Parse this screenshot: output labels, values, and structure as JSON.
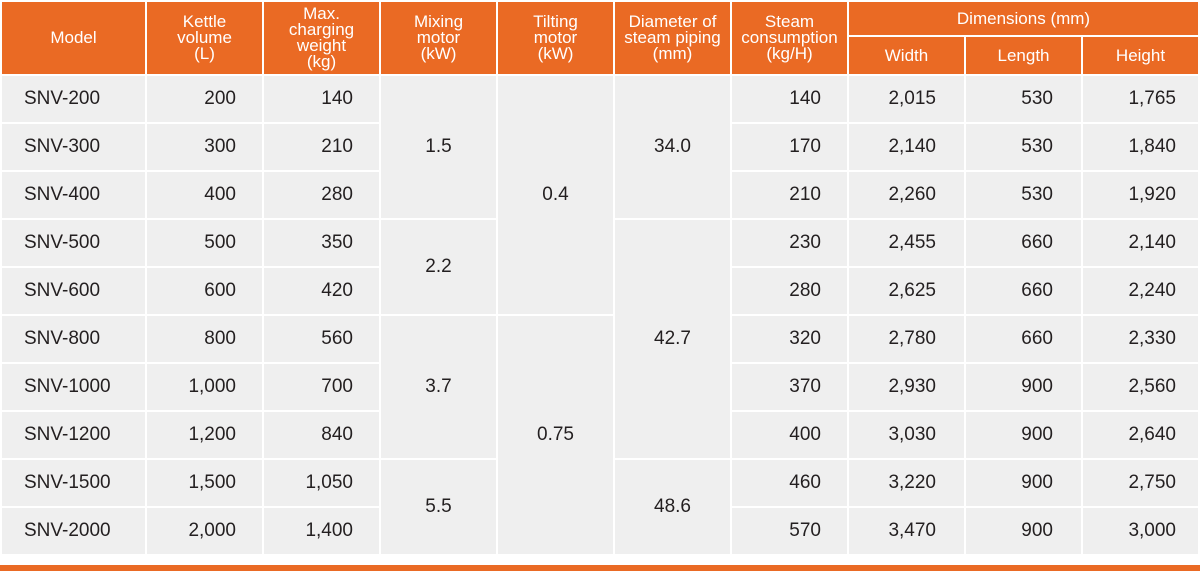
{
  "header": {
    "model": "Model",
    "kettle_volume": [
      "Kettle",
      "volume",
      "(L)"
    ],
    "max_charging": [
      "Max.",
      "charging",
      "weight",
      "(kg)"
    ],
    "mixing_motor": [
      "Mixing",
      "motor",
      "(kW)"
    ],
    "tilting_motor": [
      "Tilting",
      "motor",
      "(kW)"
    ],
    "steam_piping": [
      "Diameter of",
      "steam piping",
      "(mm)"
    ],
    "steam_consumption": [
      "Steam",
      "consumption",
      "(kg/H)"
    ],
    "dimensions": "Dimensions (mm)",
    "width": "Width",
    "length": "Length",
    "height": "Height"
  },
  "rows": [
    {
      "model": "SNV-200",
      "volume": "200",
      "weight": "140",
      "steam": "140",
      "width": "2,015",
      "length": "530",
      "height": "1,765"
    },
    {
      "model": "SNV-300",
      "volume": "300",
      "weight": "210",
      "steam": "170",
      "width": "2,140",
      "length": "530",
      "height": "1,840"
    },
    {
      "model": "SNV-400",
      "volume": "400",
      "weight": "280",
      "steam": "210",
      "width": "2,260",
      "length": "530",
      "height": "1,920"
    },
    {
      "model": "SNV-500",
      "volume": "500",
      "weight": "350",
      "steam": "230",
      "width": "2,455",
      "length": "660",
      "height": "2,140"
    },
    {
      "model": "SNV-600",
      "volume": "600",
      "weight": "420",
      "steam": "280",
      "width": "2,625",
      "length": "660",
      "height": "2,240"
    },
    {
      "model": "SNV-800",
      "volume": "800",
      "weight": "560",
      "steam": "320",
      "width": "2,780",
      "length": "660",
      "height": "2,330"
    },
    {
      "model": "SNV-1000",
      "volume": "1,000",
      "weight": "700",
      "steam": "370",
      "width": "2,930",
      "length": "900",
      "height": "2,560"
    },
    {
      "model": "SNV-1200",
      "volume": "1,200",
      "weight": "840",
      "steam": "400",
      "width": "3,030",
      "length": "900",
      "height": "2,640"
    },
    {
      "model": "SNV-1500",
      "volume": "1,500",
      "weight": "1,050",
      "steam": "460",
      "width": "3,220",
      "length": "900",
      "height": "2,750"
    },
    {
      "model": "SNV-2000",
      "volume": "2,000",
      "weight": "1,400",
      "steam": "570",
      "width": "3,470",
      "length": "900",
      "height": "3,000"
    }
  ],
  "merged": {
    "mixing": [
      "1.5",
      "2.2",
      "3.7",
      "5.5"
    ],
    "tilting": [
      "0.4",
      "0.75"
    ],
    "piping": [
      "34.0",
      "42.7",
      "48.6"
    ]
  },
  "colors": {
    "header_bg": "#ea6a24",
    "cell_bg": "#efefef",
    "text": "#231f20"
  }
}
